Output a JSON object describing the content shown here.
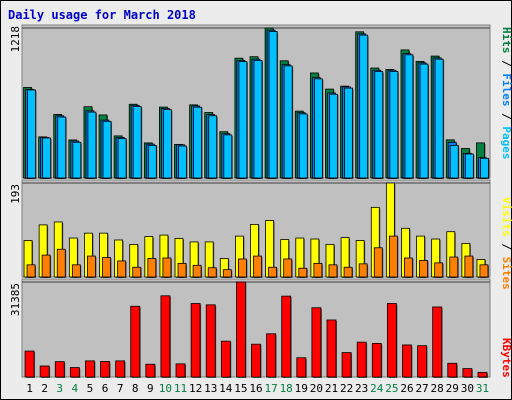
{
  "title": "Daily usage for March 2018",
  "colors": {
    "hits": "#008040",
    "files": "#0080ff",
    "pages": "#00c0ff",
    "visits": "#ffff00",
    "sites": "#ff8000",
    "kbytes": "#ff0000",
    "panel_bg": "#c0c0c0",
    "frame_bg": "#ececec",
    "weekend_label": "#008040",
    "title_blue": "#0000cc"
  },
  "chart_data": [
    {
      "type": "bar",
      "panel": "top",
      "max_label": "1218",
      "ylim": [
        0,
        1218
      ],
      "legend": [
        {
          "text": "Hits",
          "color_key": "hits"
        },
        {
          "text": "Files",
          "color_key": "files"
        },
        {
          "text": "Pages",
          "color_key": "pages"
        }
      ],
      "categories": [
        "1",
        "2",
        "3",
        "4",
        "5",
        "6",
        "7",
        "8",
        "9",
        "10",
        "11",
        "12",
        "13",
        "14",
        "15",
        "16",
        "17",
        "18",
        "19",
        "20",
        "21",
        "22",
        "23",
        "24",
        "25",
        "26",
        "27",
        "28",
        "29",
        "30",
        "31"
      ],
      "series": [
        {
          "name": "Hits",
          "values": [
            735,
            334,
            516,
            309,
            579,
            512,
            342,
            599,
            285,
            576,
            273,
            594,
            532,
            376,
            973,
            985,
            1218,
            952,
            543,
            853,
            722,
            746,
            1187,
            893,
            882,
            1040,
            947,
            990,
            310,
            240,
            285
          ]
        },
        {
          "name": "Files",
          "values": [
            720,
            330,
            505,
            300,
            545,
            470,
            330,
            590,
            275,
            565,
            270,
            585,
            515,
            360,
            955,
            965,
            1200,
            920,
            530,
            815,
            690,
            740,
            1170,
            875,
            875,
            1010,
            935,
            975,
            290,
            200,
            165
          ]
        },
        {
          "name": "Pages",
          "values": [
            715,
            325,
            495,
            290,
            535,
            460,
            320,
            580,
            265,
            555,
            260,
            575,
            505,
            350,
            945,
            955,
            1190,
            910,
            520,
            805,
            680,
            730,
            1160,
            865,
            865,
            1000,
            925,
            965,
            265,
            195,
            160
          ]
        }
      ]
    },
    {
      "type": "bar",
      "panel": "middle",
      "max_label": "193",
      "ylim": [
        0,
        193
      ],
      "legend": [
        {
          "text": "Visits",
          "color_key": "visits"
        },
        {
          "text": "Sites",
          "color_key": "sites"
        }
      ],
      "categories": [
        "1",
        "2",
        "3",
        "4",
        "5",
        "6",
        "7",
        "8",
        "9",
        "10",
        "11",
        "12",
        "13",
        "14",
        "15",
        "16",
        "17",
        "18",
        "19",
        "20",
        "21",
        "22",
        "23",
        "24",
        "25",
        "26",
        "27",
        "28",
        "29",
        "30",
        "31"
      ],
      "series": [
        {
          "name": "Visits",
          "values": [
            75,
            107,
            113,
            80,
            90,
            90,
            76,
            67,
            83,
            86,
            79,
            72,
            72,
            38,
            84,
            108,
            116,
            77,
            80,
            78,
            67,
            81,
            75,
            143,
            193,
            100,
            84,
            78,
            93,
            69,
            36
          ]
        },
        {
          "name": "Sites",
          "values": [
            25,
            45,
            57,
            25,
            43,
            40,
            33,
            20,
            38,
            39,
            28,
            24,
            19,
            15,
            37,
            43,
            20,
            37,
            18,
            28,
            25,
            20,
            27,
            60,
            84,
            39,
            34,
            29,
            41,
            43,
            25
          ]
        }
      ]
    },
    {
      "type": "bar",
      "panel": "bottom",
      "max_label": "31385",
      "ylim": [
        0,
        31385
      ],
      "legend": [
        {
          "text": "KBytes",
          "color_key": "kbytes"
        }
      ],
      "categories": [
        "1",
        "2",
        "3",
        "4",
        "5",
        "6",
        "7",
        "8",
        "9",
        "10",
        "11",
        "12",
        "13",
        "14",
        "15",
        "16",
        "17",
        "18",
        "19",
        "20",
        "21",
        "22",
        "23",
        "24",
        "25",
        "26",
        "27",
        "28",
        "29",
        "30",
        "31"
      ],
      "series": [
        {
          "name": "KBytes",
          "values": [
            8570,
            3630,
            5080,
            3120,
            5330,
            5130,
            5330,
            23370,
            4230,
            26830,
            4340,
            24280,
            23840,
            11840,
            31385,
            10840,
            14280,
            26720,
            6360,
            22880,
            18840,
            8070,
            11520,
            11100,
            24280,
            10590,
            10350,
            23140,
            4530,
            2780,
            1540
          ]
        }
      ]
    }
  ],
  "weekend_days": [
    "3",
    "4",
    "10",
    "11",
    "17",
    "18",
    "24",
    "25",
    "31"
  ]
}
